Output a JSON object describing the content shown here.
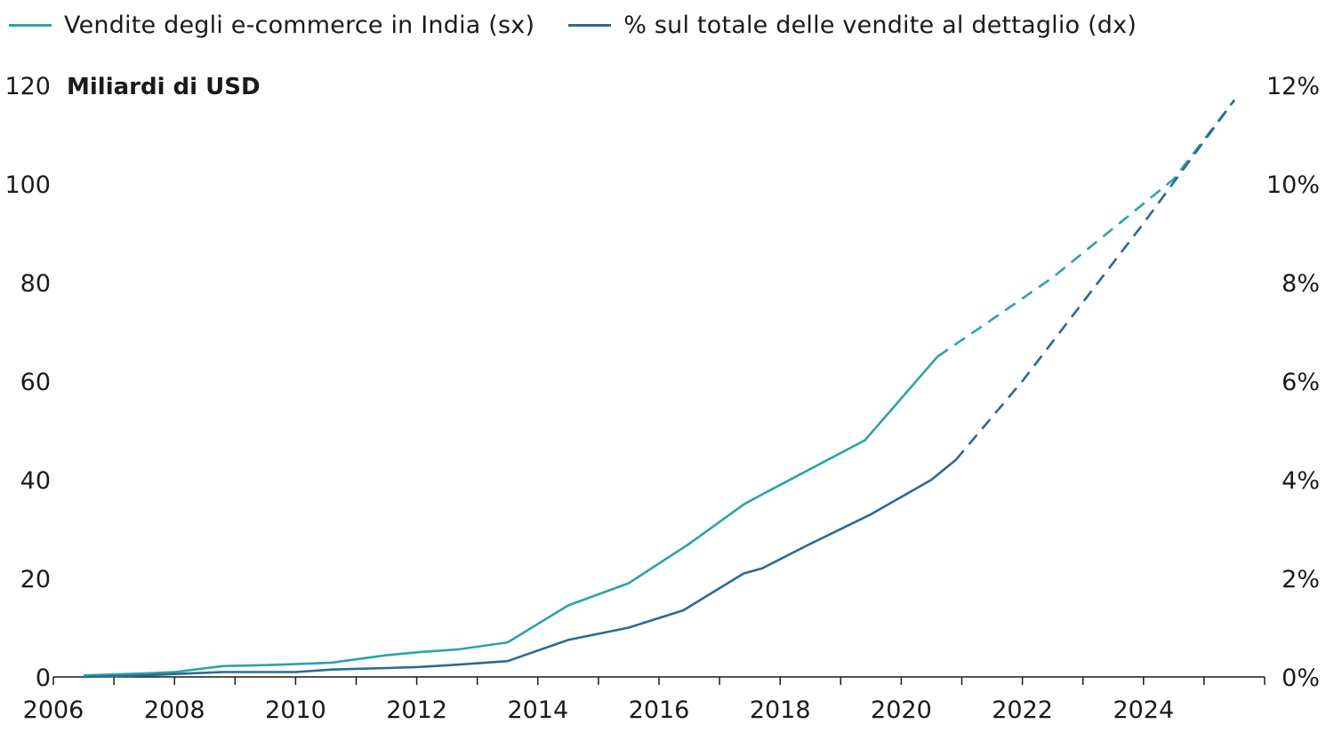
{
  "colors": {
    "series1": "#2aa4a8",
    "series2": "#2b6a95",
    "axis": "#1a1a1a"
  },
  "chart_data": {
    "type": "line",
    "y_unit_label": "Miliardi di USD",
    "series": [
      {
        "name": "Vendite degli e-commerce in India (sx)",
        "axis": "left",
        "x": [
          2006.5,
          2007.5,
          2008,
          2008.8,
          2009.5,
          2010,
          2010.6,
          2011.5,
          2012,
          2012.7,
          2013.5,
          2014.5,
          2015.5,
          2016.5,
          2017.4,
          2017.7,
          2019.4,
          2020.6,
          2021.5,
          2022.5,
          2023.5,
          2024.5,
          2025.5
        ],
        "values": [
          0.3,
          0.7,
          1,
          2.2,
          2.4,
          2.6,
          2.9,
          4.4,
          5,
          5.6,
          7,
          14.5,
          19,
          27,
          35,
          37,
          48,
          65,
          72.5,
          81,
          91,
          101,
          117
        ],
        "projection_from": 2020.6
      },
      {
        "name": "% sul totale delle vendite al dettaglio (dx)",
        "axis": "right",
        "x": [
          2006.5,
          2007.5,
          2008,
          2008.8,
          2009.5,
          2010,
          2010.6,
          2011.5,
          2012,
          2012.7,
          2013.5,
          2014.5,
          2015.5,
          2016.4,
          2017.4,
          2017.7,
          2018.5,
          2019.5,
          2020.5,
          2020.9,
          2022,
          2023,
          2024,
          2025.5
        ],
        "values": [
          0.0,
          0.03,
          0.06,
          0.1,
          0.1,
          0.1,
          0.15,
          0.18,
          0.2,
          0.25,
          0.32,
          0.75,
          1,
          1.35,
          2.1,
          2.2,
          2.7,
          3.3,
          4.0,
          4.4,
          6.0,
          7.6,
          9.2,
          11.7
        ],
        "projection_from": 2020.9
      }
    ],
    "x_ticks": [
      "2006",
      "2008",
      "2010",
      "2012",
      "2014",
      "2016",
      "2018",
      "2020",
      "2022",
      "2024"
    ],
    "xlim": [
      2006,
      2026
    ],
    "y_left_ticks": [
      "0",
      "20",
      "40",
      "60",
      "80",
      "100",
      "120"
    ],
    "ylim_left": [
      0,
      120
    ],
    "y_right_ticks": [
      "0%",
      "2%",
      "4%",
      "6%",
      "8%",
      "10%",
      "12%"
    ],
    "ylim_right": [
      0,
      12
    ],
    "grid": false,
    "legend_position": "top-left"
  }
}
